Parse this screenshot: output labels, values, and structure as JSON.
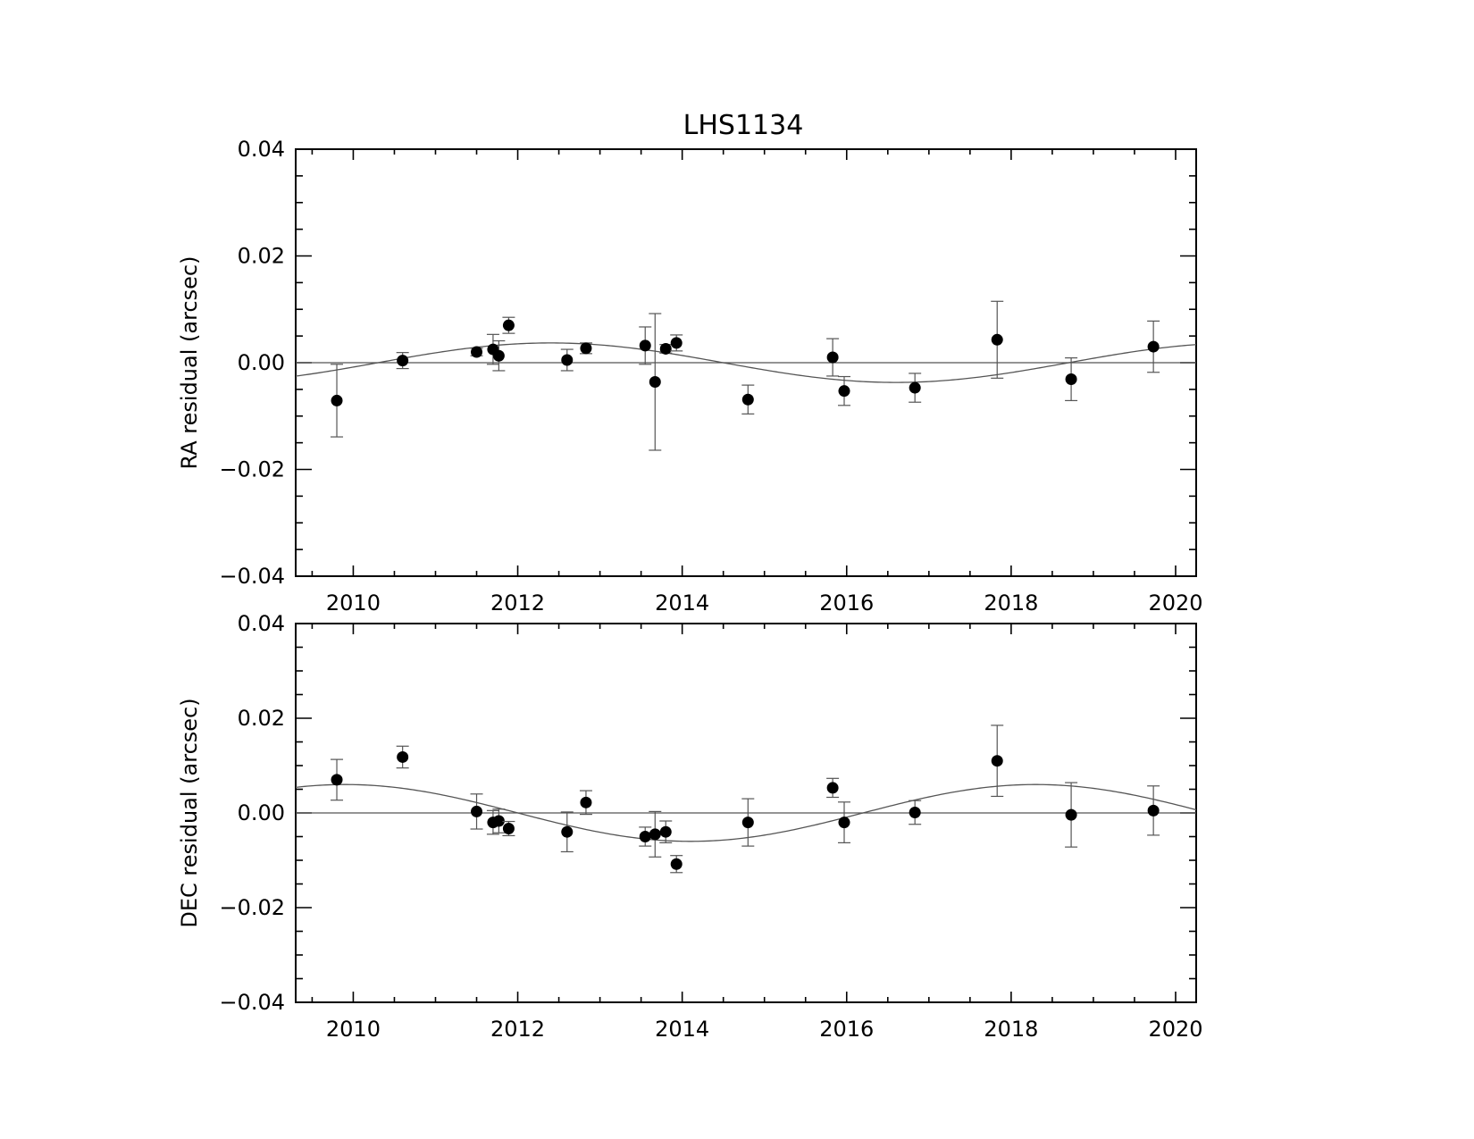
{
  "chart_data": [
    {
      "type": "scatter",
      "title": "LHS1134",
      "xlabel": "",
      "ylabel": "RA residual (arcsec)",
      "xlim": [
        2009.3,
        2020.25
      ],
      "ylim": [
        -0.04,
        0.04
      ],
      "xticks": [
        "2010",
        "2012",
        "2014",
        "2016",
        "2018",
        "2020"
      ],
      "yticks": [
        "0.04",
        "0.02",
        "0.00",
        "−0.02",
        "−0.04"
      ],
      "grid": false,
      "model_curve": {
        "amplitude": 0.0037,
        "phase_zero_year": 2010.3,
        "period_years": 8.4
      },
      "points": [
        {
          "x": 2009.8,
          "y": -0.0071,
          "err": 0.0068
        },
        {
          "x": 2010.6,
          "y": 0.0004,
          "err": 0.0015
        },
        {
          "x": 2011.5,
          "y": 0.002,
          "err": 0.0007
        },
        {
          "x": 2011.7,
          "y": 0.0025,
          "err": 0.0028
        },
        {
          "x": 2011.77,
          "y": 0.0013,
          "err": 0.0028
        },
        {
          "x": 2011.89,
          "y": 0.007,
          "err": 0.0015
        },
        {
          "x": 2012.6,
          "y": 0.0005,
          "err": 0.002
        },
        {
          "x": 2012.83,
          "y": 0.0027,
          "err": 0.001
        },
        {
          "x": 2013.55,
          "y": 0.0032,
          "err": 0.0035
        },
        {
          "x": 2013.67,
          "y": -0.0036,
          "err": 0.0128
        },
        {
          "x": 2013.8,
          "y": 0.0026,
          "err": 0.0008
        },
        {
          "x": 2013.93,
          "y": 0.0037,
          "err": 0.0015
        },
        {
          "x": 2014.8,
          "y": -0.0069,
          "err": 0.0027
        },
        {
          "x": 2015.83,
          "y": 0.001,
          "err": 0.0035
        },
        {
          "x": 2015.97,
          "y": -0.0053,
          "err": 0.0027
        },
        {
          "x": 2016.83,
          "y": -0.0047,
          "err": 0.0027
        },
        {
          "x": 2017.83,
          "y": 0.0043,
          "err": 0.0072
        },
        {
          "x": 2018.73,
          "y": -0.0031,
          "err": 0.004
        },
        {
          "x": 2019.73,
          "y": 0.003,
          "err": 0.0048
        }
      ]
    },
    {
      "type": "scatter",
      "title": "",
      "xlabel": "",
      "ylabel": "DEC residual (arcsec)",
      "xlim": [
        2009.3,
        2020.25
      ],
      "ylim": [
        -0.04,
        0.04
      ],
      "xticks": [
        "2010",
        "2012",
        "2014",
        "2016",
        "2018",
        "2020"
      ],
      "yticks": [
        "0.04",
        "0.02",
        "0.00",
        "−0.02",
        "−0.04"
      ],
      "grid": false,
      "model_curve": {
        "amplitude": 0.006,
        "phase_zero_year": 2007.8,
        "period_years": 8.4
      },
      "points": [
        {
          "x": 2009.8,
          "y": 0.007,
          "err": 0.0043
        },
        {
          "x": 2010.6,
          "y": 0.0118,
          "err": 0.0023
        },
        {
          "x": 2011.5,
          "y": 0.0003,
          "err": 0.0037
        },
        {
          "x": 2011.7,
          "y": -0.002,
          "err": 0.0025
        },
        {
          "x": 2011.77,
          "y": -0.0017,
          "err": 0.0025
        },
        {
          "x": 2011.89,
          "y": -0.0033,
          "err": 0.0015
        },
        {
          "x": 2012.6,
          "y": -0.004,
          "err": 0.0042
        },
        {
          "x": 2012.83,
          "y": 0.0022,
          "err": 0.0025
        },
        {
          "x": 2013.55,
          "y": -0.005,
          "err": 0.002
        },
        {
          "x": 2013.67,
          "y": -0.0045,
          "err": 0.0048
        },
        {
          "x": 2013.8,
          "y": -0.004,
          "err": 0.0023
        },
        {
          "x": 2013.93,
          "y": -0.0108,
          "err": 0.0018
        },
        {
          "x": 2014.8,
          "y": -0.002,
          "err": 0.005
        },
        {
          "x": 2015.83,
          "y": 0.0053,
          "err": 0.002
        },
        {
          "x": 2015.97,
          "y": -0.002,
          "err": 0.0043
        },
        {
          "x": 2016.83,
          "y": 0.0001,
          "err": 0.0025
        },
        {
          "x": 2017.83,
          "y": 0.011,
          "err": 0.0075
        },
        {
          "x": 2018.73,
          "y": -0.0004,
          "err": 0.0068
        },
        {
          "x": 2019.73,
          "y": 0.0005,
          "err": 0.0052
        }
      ]
    }
  ]
}
